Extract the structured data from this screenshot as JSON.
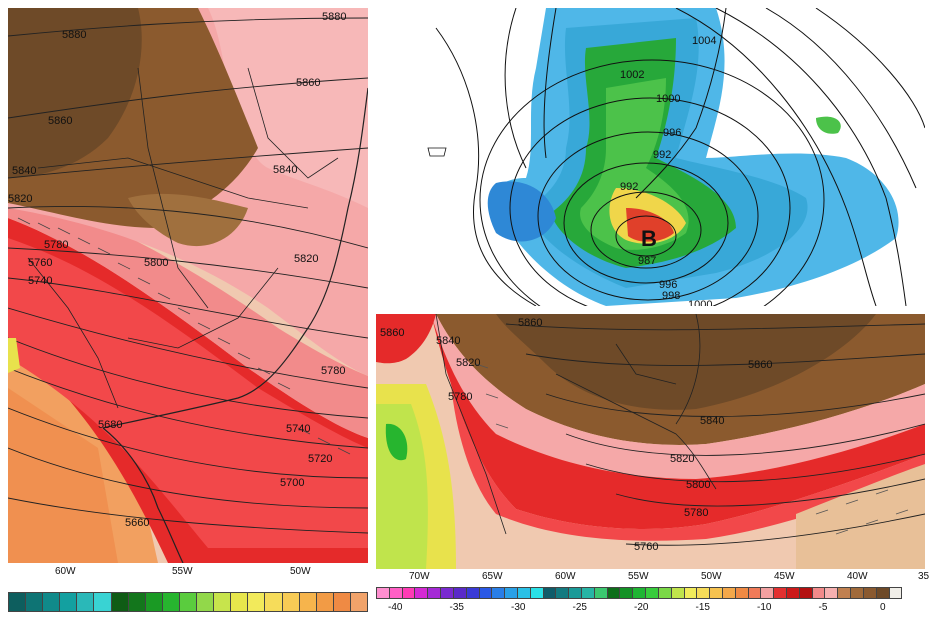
{
  "left_panel": {
    "contour_labels": [
      "5880",
      "5880",
      "5860",
      "5860",
      "5840",
      "5840",
      "5820",
      "5820",
      "5800",
      "5780",
      "5780",
      "5760",
      "5740",
      "5740",
      "5720",
      "5700",
      "5680",
      "5660"
    ],
    "lon_labels": [
      "60W",
      "55W",
      "50W"
    ],
    "colorbar": [
      "#0d5e5e",
      "#0e7474",
      "#108a8a",
      "#13a0a0",
      "#2ab8b8",
      "#39d3d3",
      "#0f5c15",
      "#13761c",
      "#1a9a24",
      "#27b52f",
      "#5acc3e",
      "#92d84a",
      "#c7e44c",
      "#e7e64c",
      "#f2ea5b",
      "#f6dc5a",
      "#f7cb55",
      "#f6b44c",
      "#f29b45",
      "#ef8a44",
      "#f1a36a"
    ]
  },
  "top_right_panel": {
    "pressure_labels": [
      "1004",
      "1002",
      "1000",
      "996",
      "992",
      "992",
      "987",
      "996",
      "998",
      "1000"
    ],
    "low_marker": "B"
  },
  "bottom_right_panel": {
    "contour_labels": [
      "5860",
      "5840",
      "5820",
      "5780",
      "5860",
      "5860",
      "5840",
      "5820",
      "5800",
      "5780",
      "5760"
    ],
    "lon_labels": [
      "70W",
      "65W",
      "60W",
      "55W",
      "50W",
      "45W",
      "40W",
      "35"
    ],
    "colorbar": [
      "#ff8fd0",
      "#ff5fc5",
      "#ff3bb5",
      "#d52ad4",
      "#a52ad6",
      "#7a2ad0",
      "#5a2ac9",
      "#3a3ad6",
      "#2a58e6",
      "#2a7ee6",
      "#2aa0e6",
      "#2ac0e6",
      "#2ae0e6",
      "#0f5c6a",
      "#137a80",
      "#1a9a98",
      "#27b5a5",
      "#3bc870",
      "#0d6e1a",
      "#139226",
      "#1fb533",
      "#38cc3c",
      "#7ad846",
      "#c0e44c",
      "#f2ec5b",
      "#f7dc58",
      "#f6c24f",
      "#f4a84a",
      "#f08a44",
      "#f07a58",
      "#f2a0a0",
      "#e33030",
      "#cc1a1a",
      "#b31010",
      "#f28a8a",
      "#f7b0b0",
      "#c08050",
      "#a06a3a",
      "#8a5a30",
      "#6e4a28",
      "#f0eee8"
    ],
    "colorbar_ticks": [
      "-40",
      "-35",
      "-30",
      "-25",
      "-20",
      "-15",
      "-10",
      "-5",
      "0"
    ]
  }
}
